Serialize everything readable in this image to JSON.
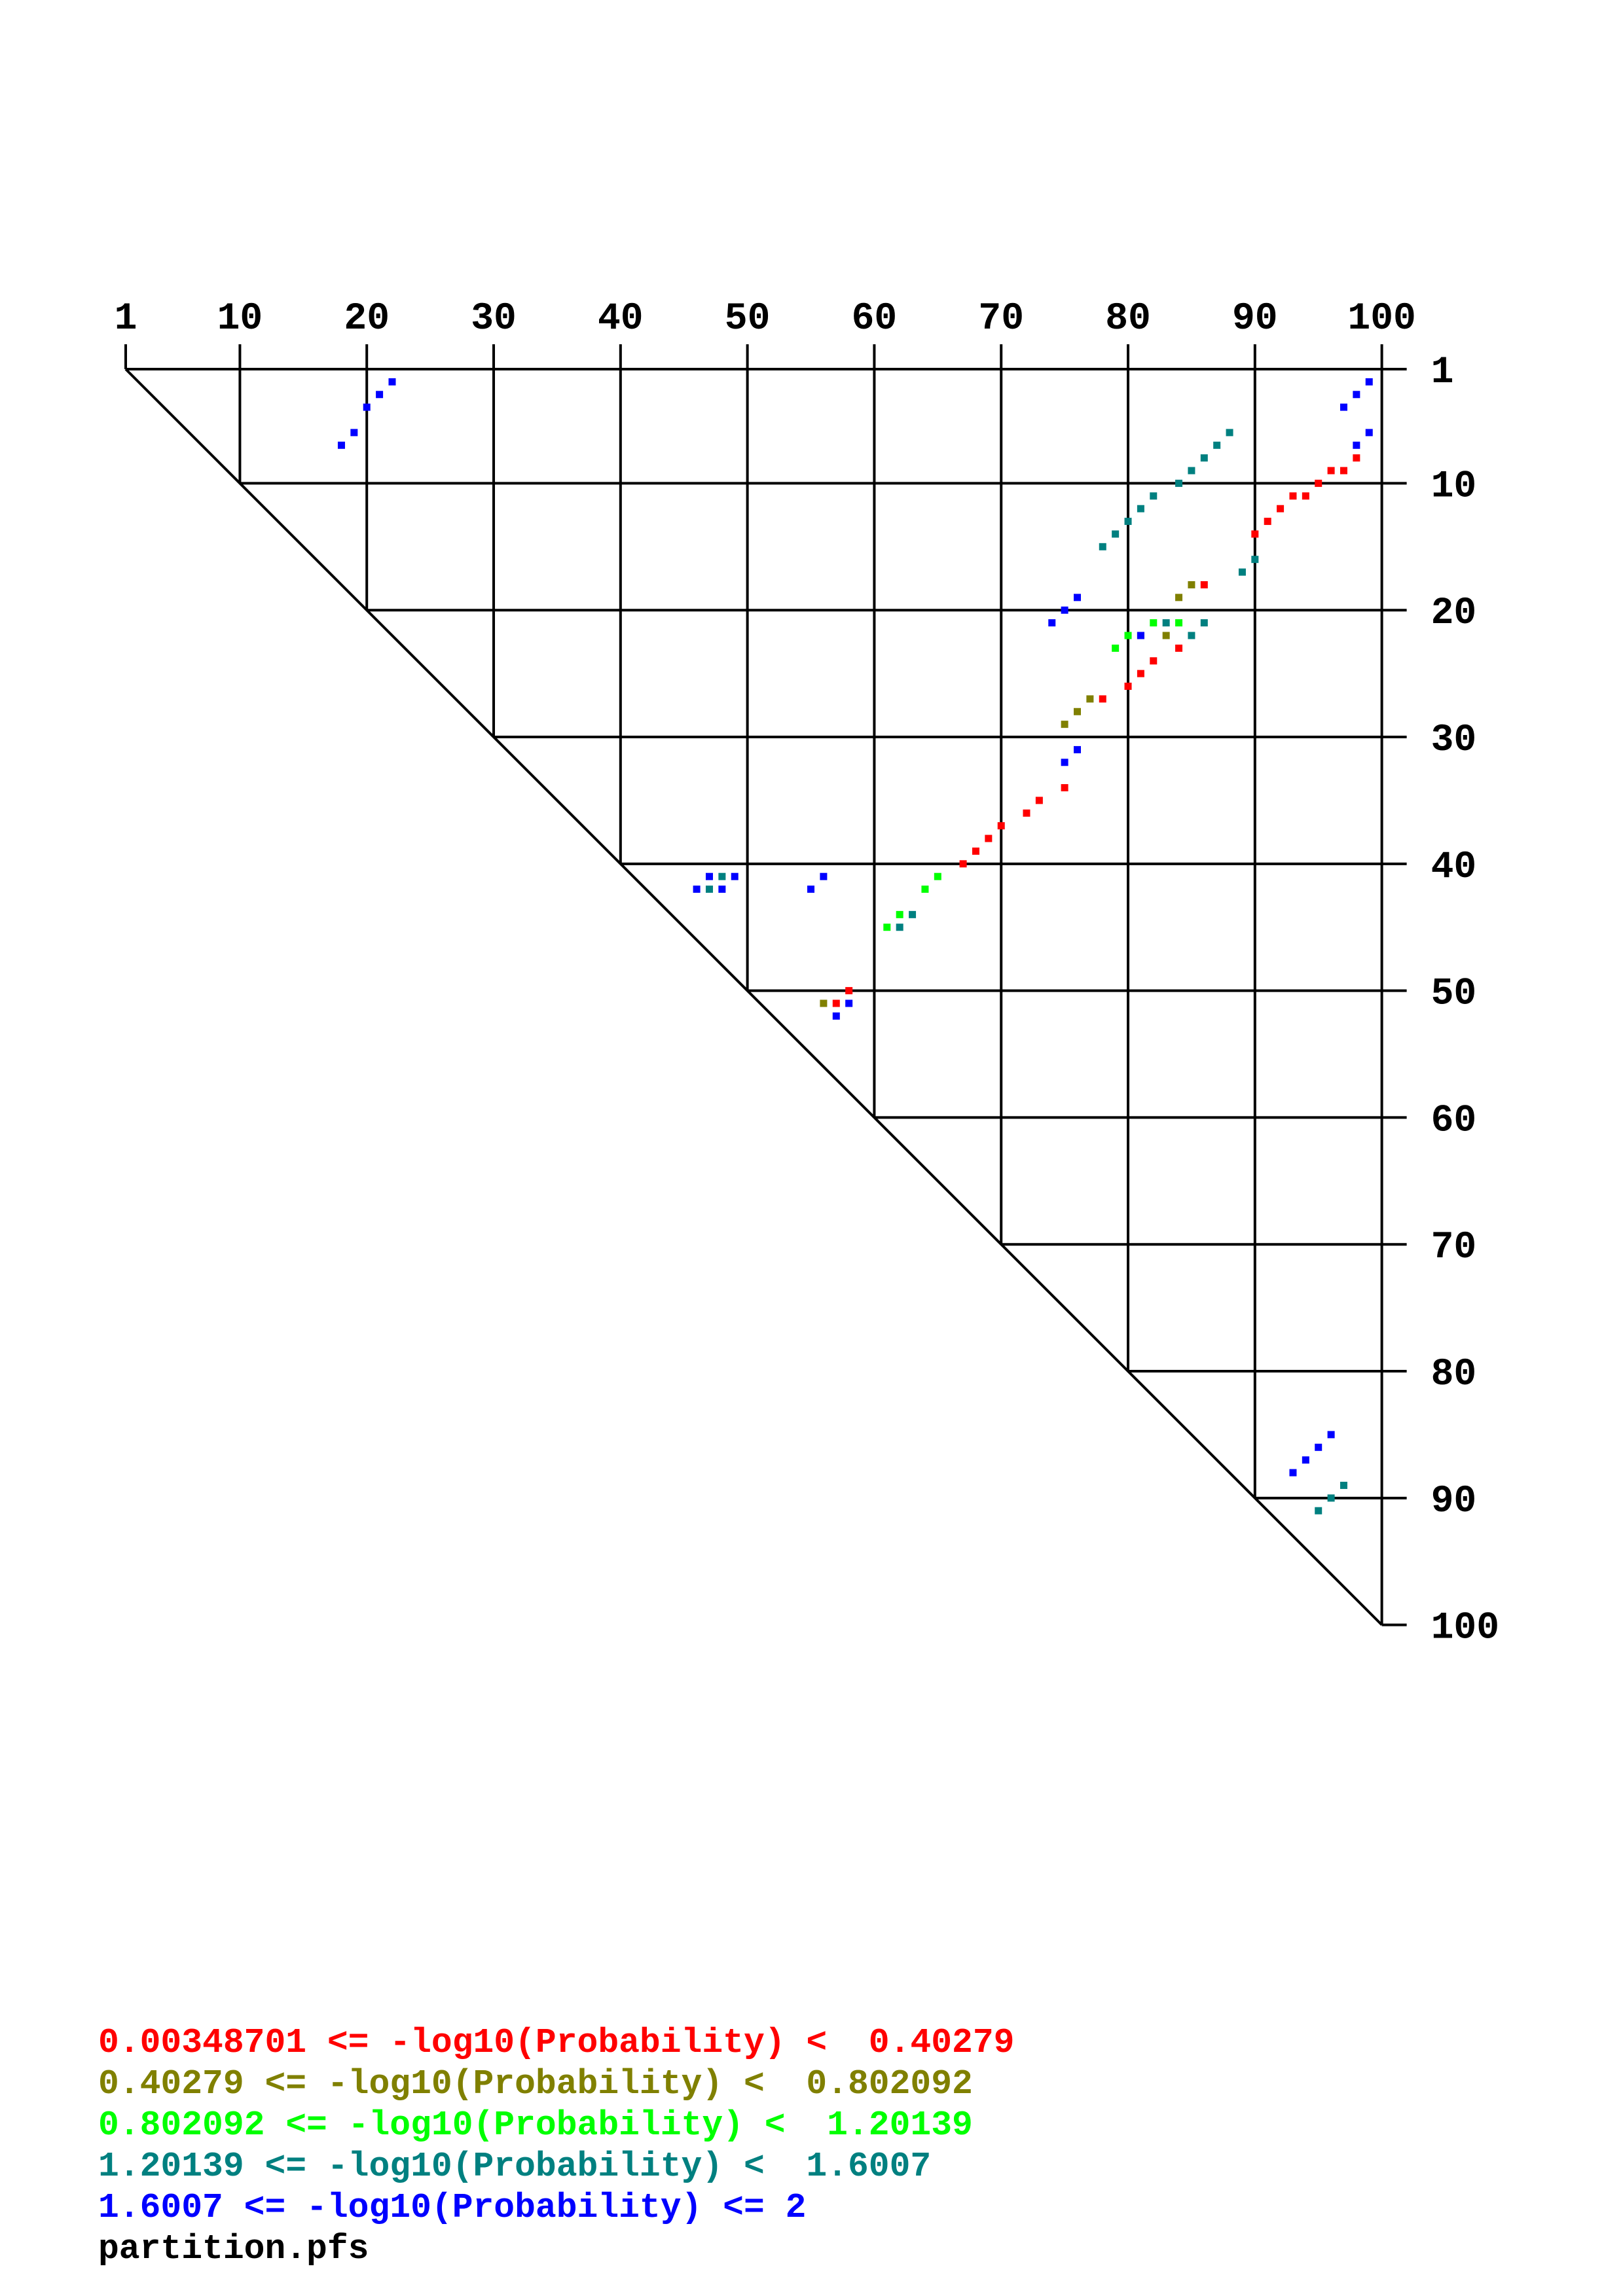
{
  "chart_data": {
    "type": "scatter",
    "sequence_length": 100,
    "x_ticks": [
      1,
      10,
      20,
      30,
      40,
      50,
      60,
      70,
      80,
      90,
      100
    ],
    "y_ticks": [
      1,
      10,
      20,
      30,
      40,
      50,
      60,
      70,
      80,
      90,
      100
    ],
    "xlim": [
      1,
      100
    ],
    "ylim": [
      1,
      100
    ],
    "grid": true,
    "series": [
      {
        "color": "#ff0000",
        "legend": "0.00348701 <= -log10(Probability) <  0.40279",
        "points": [
          [
            98,
            8
          ],
          [
            97,
            9
          ],
          [
            96,
            9
          ],
          [
            95,
            10
          ],
          [
            94,
            11
          ],
          [
            93,
            11
          ],
          [
            92,
            12
          ],
          [
            91,
            13
          ],
          [
            90,
            14
          ],
          [
            86,
            18
          ],
          [
            84,
            23
          ],
          [
            82,
            24
          ],
          [
            81,
            25
          ],
          [
            80,
            26
          ],
          [
            78,
            27
          ],
          [
            75,
            34
          ],
          [
            73,
            35
          ],
          [
            72,
            36
          ],
          [
            70,
            37
          ],
          [
            69,
            38
          ],
          [
            68,
            39
          ],
          [
            67,
            40
          ],
          [
            58,
            50
          ],
          [
            57,
            51
          ]
        ]
      },
      {
        "color": "#808000",
        "legend": "0.40279 <= -log10(Probability) <  0.802092",
        "points": [
          [
            85,
            18
          ],
          [
            84,
            19
          ],
          [
            83,
            22
          ],
          [
            81,
            22
          ],
          [
            77,
            27
          ],
          [
            76,
            28
          ],
          [
            75,
            29
          ],
          [
            56,
            51
          ]
        ]
      },
      {
        "color": "#00ff00",
        "legend": "0.802092 <= -log10(Probability) <  1.20139",
        "points": [
          [
            84,
            21
          ],
          [
            82,
            21
          ],
          [
            80,
            22
          ],
          [
            79,
            23
          ],
          [
            65,
            41
          ],
          [
            64,
            42
          ],
          [
            62,
            44
          ],
          [
            61,
            45
          ]
        ]
      },
      {
        "color": "#008080",
        "legend": "1.20139 <= -log10(Probability) <  1.6007",
        "points": [
          [
            88,
            6
          ],
          [
            87,
            7
          ],
          [
            86,
            8
          ],
          [
            85,
            9
          ],
          [
            84,
            10
          ],
          [
            82,
            11
          ],
          [
            81,
            12
          ],
          [
            80,
            13
          ],
          [
            79,
            14
          ],
          [
            78,
            15
          ],
          [
            90,
            16
          ],
          [
            89,
            17
          ],
          [
            86,
            21
          ],
          [
            83,
            21
          ],
          [
            85,
            22
          ],
          [
            48,
            41
          ],
          [
            47,
            42
          ],
          [
            63,
            44
          ],
          [
            62,
            45
          ],
          [
            97,
            89
          ],
          [
            96,
            90
          ],
          [
            95,
            91
          ]
        ]
      },
      {
        "color": "#0000ff",
        "legend": "1.6007 <= -log10(Probability) <= 2",
        "points": [
          [
            22,
            2
          ],
          [
            21,
            3
          ],
          [
            20,
            4
          ],
          [
            19,
            6
          ],
          [
            18,
            7
          ],
          [
            99,
            2
          ],
          [
            98,
            3
          ],
          [
            97,
            4
          ],
          [
            99,
            6
          ],
          [
            98,
            7
          ],
          [
            76,
            19
          ],
          [
            75,
            20
          ],
          [
            74,
            21
          ],
          [
            81,
            22
          ],
          [
            76,
            31
          ],
          [
            75,
            32
          ],
          [
            49,
            41
          ],
          [
            47,
            41
          ],
          [
            46,
            42
          ],
          [
            48,
            42
          ],
          [
            56,
            41
          ],
          [
            55,
            42
          ],
          [
            58,
            51
          ],
          [
            57,
            52
          ],
          [
            96,
            85
          ],
          [
            95,
            86
          ],
          [
            94,
            87
          ],
          [
            93,
            88
          ]
        ]
      }
    ],
    "title": "partition.pfs"
  }
}
